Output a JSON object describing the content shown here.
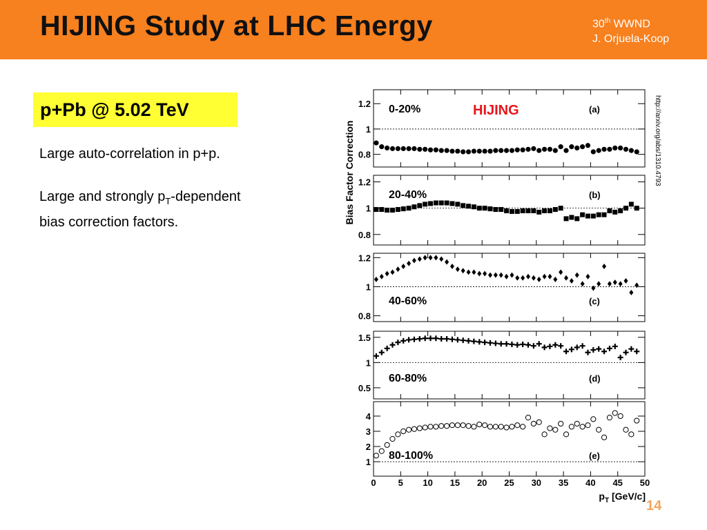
{
  "header": {
    "title": "HIJING Study at LHC Energy",
    "conference": {
      "number": "30",
      "sup": "th",
      "name": "WWND"
    },
    "author": "J. Orjuela-Koop"
  },
  "tag": "p+Pb @ 5.02 TeV",
  "bullets": [
    {
      "text": "Large auto-correlation in p+p."
    },
    {
      "text": "Large and strongly p",
      "sub": "T",
      "rest": "-dependent",
      "line2": "bias correction factors."
    }
  ],
  "ylabel": "Bias Factor Correction",
  "source": "http://arxiv.org/abs/1310.4793",
  "page": "14",
  "chart_data": [
    {
      "type": "scatter",
      "marker": "circle",
      "label": "0-20%",
      "panel": "(a)",
      "annotation": "HIJING",
      "label_position": "top",
      "reference": 1,
      "xlim": [
        0,
        50
      ],
      "xticks": [
        0,
        5,
        10,
        15,
        20,
        25,
        30,
        35,
        40,
        45,
        50
      ],
      "ylim": [
        0.7,
        1.31
      ],
      "yticks": [
        0.8,
        1,
        1.2
      ],
      "x": [
        0.5,
        1.5,
        2.5,
        3.5,
        4.5,
        5.5,
        6.5,
        7.5,
        8.5,
        9.5,
        10.5,
        11.5,
        12.5,
        13.5,
        14.5,
        15.5,
        16.5,
        17.5,
        18.5,
        19.5,
        20.5,
        21.5,
        22.5,
        23.5,
        24.5,
        25.5,
        26.5,
        27.5,
        28.5,
        29.5,
        30.5,
        31.5,
        32.5,
        33.5,
        34.5,
        35.5,
        36.5,
        37.5,
        38.5,
        39.5,
        40.5,
        41.5,
        42.5,
        43.5,
        44.5,
        45.5,
        46.5,
        47.5,
        48.5
      ],
      "values": [
        0.89,
        0.86,
        0.85,
        0.845,
        0.845,
        0.845,
        0.845,
        0.845,
        0.84,
        0.84,
        0.835,
        0.835,
        0.83,
        0.83,
        0.825,
        0.825,
        0.82,
        0.82,
        0.825,
        0.825,
        0.825,
        0.825,
        0.83,
        0.83,
        0.83,
        0.83,
        0.835,
        0.835,
        0.84,
        0.845,
        0.83,
        0.84,
        0.84,
        0.83,
        0.86,
        0.83,
        0.86,
        0.85,
        0.86,
        0.87,
        0.82,
        0.83,
        0.84,
        0.84,
        0.85,
        0.85,
        0.84,
        0.83,
        0.82
      ]
    },
    {
      "type": "scatter",
      "marker": "square",
      "label": "20-40%",
      "panel": "(b)",
      "label_position": "top",
      "reference": 1,
      "xlim": [
        0,
        50
      ],
      "xticks": [
        0,
        5,
        10,
        15,
        20,
        25,
        30,
        35,
        40,
        45,
        50
      ],
      "ylim": [
        0.72,
        1.25
      ],
      "yticks": [
        0.8,
        1,
        1.2
      ],
      "x": [
        0.5,
        1.5,
        2.5,
        3.5,
        4.5,
        5.5,
        6.5,
        7.5,
        8.5,
        9.5,
        10.5,
        11.5,
        12.5,
        13.5,
        14.5,
        15.5,
        16.5,
        17.5,
        18.5,
        19.5,
        20.5,
        21.5,
        22.5,
        23.5,
        24.5,
        25.5,
        26.5,
        27.5,
        28.5,
        29.5,
        30.5,
        31.5,
        32.5,
        33.5,
        34.5,
        35.5,
        36.5,
        37.5,
        38.5,
        39.5,
        40.5,
        41.5,
        42.5,
        43.5,
        44.5,
        45.5,
        46.5,
        47.5,
        48.5
      ],
      "values": [
        0.99,
        0.99,
        0.985,
        0.985,
        0.99,
        0.995,
        1.0,
        1.01,
        1.02,
        1.03,
        1.035,
        1.04,
        1.04,
        1.04,
        1.035,
        1.03,
        1.02,
        1.015,
        1.01,
        1.0,
        1.0,
        0.995,
        0.99,
        0.99,
        0.98,
        0.975,
        0.975,
        0.98,
        0.98,
        0.98,
        0.97,
        0.98,
        0.98,
        0.99,
        1.0,
        0.92,
        0.93,
        0.92,
        0.95,
        0.94,
        0.94,
        0.95,
        0.95,
        0.98,
        0.97,
        0.98,
        1.0,
        1.03,
        1.0
      ]
    },
    {
      "type": "scatter",
      "marker": "diamond",
      "label": "40-60%",
      "panel": "(c)",
      "label_position": "bottom",
      "reference": 1,
      "xlim": [
        0,
        50
      ],
      "xticks": [
        0,
        5,
        10,
        15,
        20,
        25,
        30,
        35,
        40,
        45,
        50
      ],
      "ylim": [
        0.76,
        1.23
      ],
      "yticks": [
        0.8,
        1,
        1.2
      ],
      "x": [
        0.5,
        1.5,
        2.5,
        3.5,
        4.5,
        5.5,
        6.5,
        7.5,
        8.5,
        9.5,
        10.5,
        11.5,
        12.5,
        13.5,
        14.5,
        15.5,
        16.5,
        17.5,
        18.5,
        19.5,
        20.5,
        21.5,
        22.5,
        23.5,
        24.5,
        25.5,
        26.5,
        27.5,
        28.5,
        29.5,
        30.5,
        31.5,
        32.5,
        33.5,
        34.5,
        35.5,
        36.5,
        37.5,
        38.5,
        39.5,
        40.5,
        41.5,
        42.5,
        43.5,
        44.5,
        45.5,
        46.5,
        47.5,
        48.5
      ],
      "values": [
        1.05,
        1.07,
        1.09,
        1.1,
        1.12,
        1.14,
        1.16,
        1.18,
        1.19,
        1.2,
        1.2,
        1.2,
        1.19,
        1.17,
        1.14,
        1.12,
        1.11,
        1.1,
        1.1,
        1.09,
        1.09,
        1.08,
        1.08,
        1.08,
        1.07,
        1.08,
        1.06,
        1.06,
        1.07,
        1.06,
        1.05,
        1.07,
        1.07,
        1.05,
        1.1,
        1.06,
        1.04,
        1.08,
        1.02,
        1.07,
        0.99,
        1.02,
        1.14,
        1.02,
        1.03,
        1.02,
        1.04,
        0.96,
        1.01
      ]
    },
    {
      "type": "scatter",
      "marker": "cross",
      "label": "60-80%",
      "panel": "(d)",
      "label_position": "bottom",
      "reference": 1,
      "xlim": [
        0,
        50
      ],
      "xticks": [
        0,
        5,
        10,
        15,
        20,
        25,
        30,
        35,
        40,
        45,
        50
      ],
      "ylim": [
        0.28,
        1.62
      ],
      "yticks": [
        0.5,
        1,
        1.5
      ],
      "x": [
        0.5,
        1.5,
        2.5,
        3.5,
        4.5,
        5.5,
        6.5,
        7.5,
        8.5,
        9.5,
        10.5,
        11.5,
        12.5,
        13.5,
        14.5,
        15.5,
        16.5,
        17.5,
        18.5,
        19.5,
        20.5,
        21.5,
        22.5,
        23.5,
        24.5,
        25.5,
        26.5,
        27.5,
        28.5,
        29.5,
        30.5,
        31.5,
        32.5,
        33.5,
        34.5,
        35.5,
        36.5,
        37.5,
        38.5,
        39.5,
        40.5,
        41.5,
        42.5,
        43.5,
        44.5,
        45.5,
        46.5,
        47.5,
        48.5
      ],
      "values": [
        1.13,
        1.2,
        1.28,
        1.35,
        1.4,
        1.43,
        1.45,
        1.46,
        1.47,
        1.48,
        1.48,
        1.48,
        1.47,
        1.47,
        1.46,
        1.45,
        1.44,
        1.43,
        1.42,
        1.41,
        1.4,
        1.39,
        1.38,
        1.37,
        1.37,
        1.36,
        1.35,
        1.36,
        1.35,
        1.33,
        1.37,
        1.3,
        1.32,
        1.35,
        1.33,
        1.22,
        1.26,
        1.3,
        1.33,
        1.2,
        1.25,
        1.27,
        1.22,
        1.28,
        1.32,
        1.1,
        1.2,
        1.27,
        1.22
      ]
    },
    {
      "type": "scatter",
      "marker": "open-circle",
      "label": "80-100%",
      "panel": "(e)",
      "label_position": "bottom",
      "reference": 1,
      "xlim": [
        0,
        50
      ],
      "xticks": [
        0,
        5,
        10,
        15,
        20,
        25,
        30,
        35,
        40,
        45,
        50
      ],
      "ylim": [
        0.05,
        4.95
      ],
      "yticks": [
        1,
        2,
        3,
        4
      ],
      "xlabel": {
        "main": "p",
        "sub": "T",
        "rest": " [GeV/c]"
      },
      "x": [
        0.5,
        1.5,
        2.5,
        3.5,
        4.5,
        5.5,
        6.5,
        7.5,
        8.5,
        9.5,
        10.5,
        11.5,
        12.5,
        13.5,
        14.5,
        15.5,
        16.5,
        17.5,
        18.5,
        19.5,
        20.5,
        21.5,
        22.5,
        23.5,
        24.5,
        25.5,
        26.5,
        27.5,
        28.5,
        29.5,
        30.5,
        31.5,
        32.5,
        33.5,
        34.5,
        35.5,
        36.5,
        37.5,
        38.5,
        39.5,
        40.5,
        41.5,
        42.5,
        43.5,
        44.5,
        45.5,
        46.5,
        47.5,
        48.5
      ],
      "values": [
        1.4,
        1.7,
        2.1,
        2.5,
        2.8,
        3.0,
        3.1,
        3.15,
        3.2,
        3.25,
        3.3,
        3.3,
        3.35,
        3.35,
        3.4,
        3.4,
        3.4,
        3.35,
        3.3,
        3.45,
        3.4,
        3.3,
        3.3,
        3.3,
        3.25,
        3.3,
        3.4,
        3.3,
        3.9,
        3.5,
        3.6,
        2.8,
        3.2,
        3.1,
        3.5,
        2.8,
        3.3,
        3.5,
        3.3,
        3.4,
        3.8,
        3.1,
        2.6,
        3.9,
        4.2,
        4.0,
        3.1,
        2.8,
        3.7
      ]
    }
  ]
}
